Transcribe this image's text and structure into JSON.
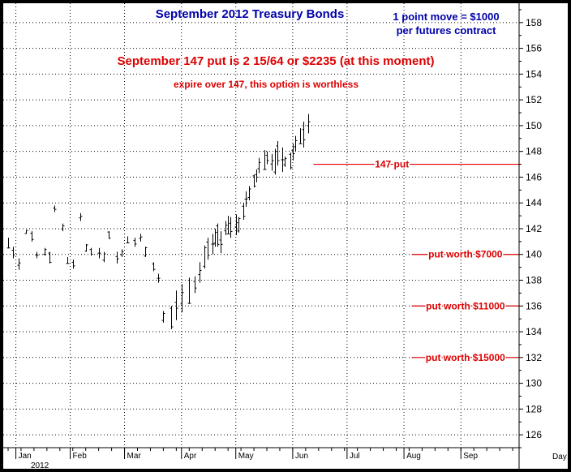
{
  "chart_data": {
    "type": "ohlc",
    "title": "September 2012 Treasury Bonds",
    "note_lines": [
      "1 point move = $1000",
      "per futures contract"
    ],
    "headline": "September 147 put is 2 15/64 or $2235 (at this moment)",
    "subheadline": "expire over 147, this option is worthless",
    "ylim": [
      125,
      159.5
    ],
    "yticks": [
      126,
      128,
      130,
      132,
      134,
      136,
      138,
      140,
      142,
      144,
      146,
      148,
      150,
      152,
      154,
      156,
      158
    ],
    "x_axis_unit_label": "Day",
    "year_label": "2012",
    "months": [
      "Jan",
      "Feb",
      "Mar",
      "Apr",
      "May",
      "Jun",
      "Jul",
      "Aug",
      "Sep"
    ],
    "grid": true,
    "colors": {
      "title": "#0000aa",
      "annotation": "#dd0000",
      "bars": "#000000",
      "background": "#ffffff",
      "frame": "#000000"
    },
    "levels": [
      {
        "label": "147 put",
        "y": 147,
        "x_from_day": 118
      },
      {
        "label": "put worth $7000",
        "y": 140,
        "x_from_day": 156
      },
      {
        "label": "put worth $11000",
        "y": 136,
        "x_from_day": 156
      },
      {
        "label": "put worth $15000",
        "y": 132,
        "x_from_day": 156
      }
    ],
    "series": [
      {
        "day": [
          0,
          2,
          4,
          7,
          9,
          11,
          14,
          16,
          18,
          21,
          23,
          25,
          28,
          30,
          32,
          35,
          37,
          39,
          42,
          44,
          46,
          49,
          51,
          53,
          56,
          58,
          60,
          63,
          65,
          67,
          70,
          72,
          74,
          76,
          77,
          79,
          80,
          81,
          82,
          84,
          85,
          86,
          88,
          89,
          91,
          92,
          93,
          95,
          96,
          97,
          99,
          100,
          102,
          103,
          104,
          106,
          107,
          109,
          110,
          111,
          113,
          114,
          116
        ],
        "high": [
          141.3,
          140.6,
          139.7,
          141.9,
          141.8,
          140.2,
          140.5,
          140.2,
          143.8,
          142.4,
          139.8,
          139.6,
          143.2,
          140.8,
          140.5,
          140.5,
          140.2,
          141.8,
          140.2,
          140.4,
          141.4,
          141.3,
          141.6,
          140.6,
          139.4,
          138.5,
          135.6,
          136.0,
          137.2,
          137.7,
          138.2,
          138.3,
          139.4,
          140.7,
          141.3,
          141.6,
          142.0,
          142.4,
          141.8,
          142.6,
          143.0,
          142.9,
          143.1,
          142.9,
          144.0,
          144.9,
          145.3,
          146.2,
          146.6,
          147.5,
          148.1,
          148.0,
          147.8,
          148.2,
          148.8,
          148.3,
          147.6,
          147.9,
          148.6,
          149.2,
          149.8,
          150.3,
          150.9
        ],
        "low": [
          140.5,
          139.7,
          138.8,
          141.6,
          141.0,
          139.7,
          139.9,
          139.3,
          143.3,
          141.8,
          139.3,
          138.9,
          142.6,
          140.2,
          139.9,
          139.7,
          139.4,
          141.2,
          139.3,
          139.8,
          140.9,
          140.6,
          141.0,
          139.8,
          138.7,
          137.8,
          134.7,
          134.2,
          134.9,
          135.5,
          136.2,
          137.0,
          137.8,
          138.9,
          139.6,
          140.0,
          140.6,
          140.6,
          140.1,
          141.5,
          141.6,
          141.3,
          141.5,
          141.7,
          142.7,
          143.7,
          144.2,
          145.2,
          145.6,
          146.3,
          146.6,
          147.0,
          146.5,
          146.2,
          146.9,
          146.4,
          146.8,
          146.6,
          147.3,
          148.0,
          148.6,
          148.3,
          149.4
        ]
      }
    ]
  }
}
